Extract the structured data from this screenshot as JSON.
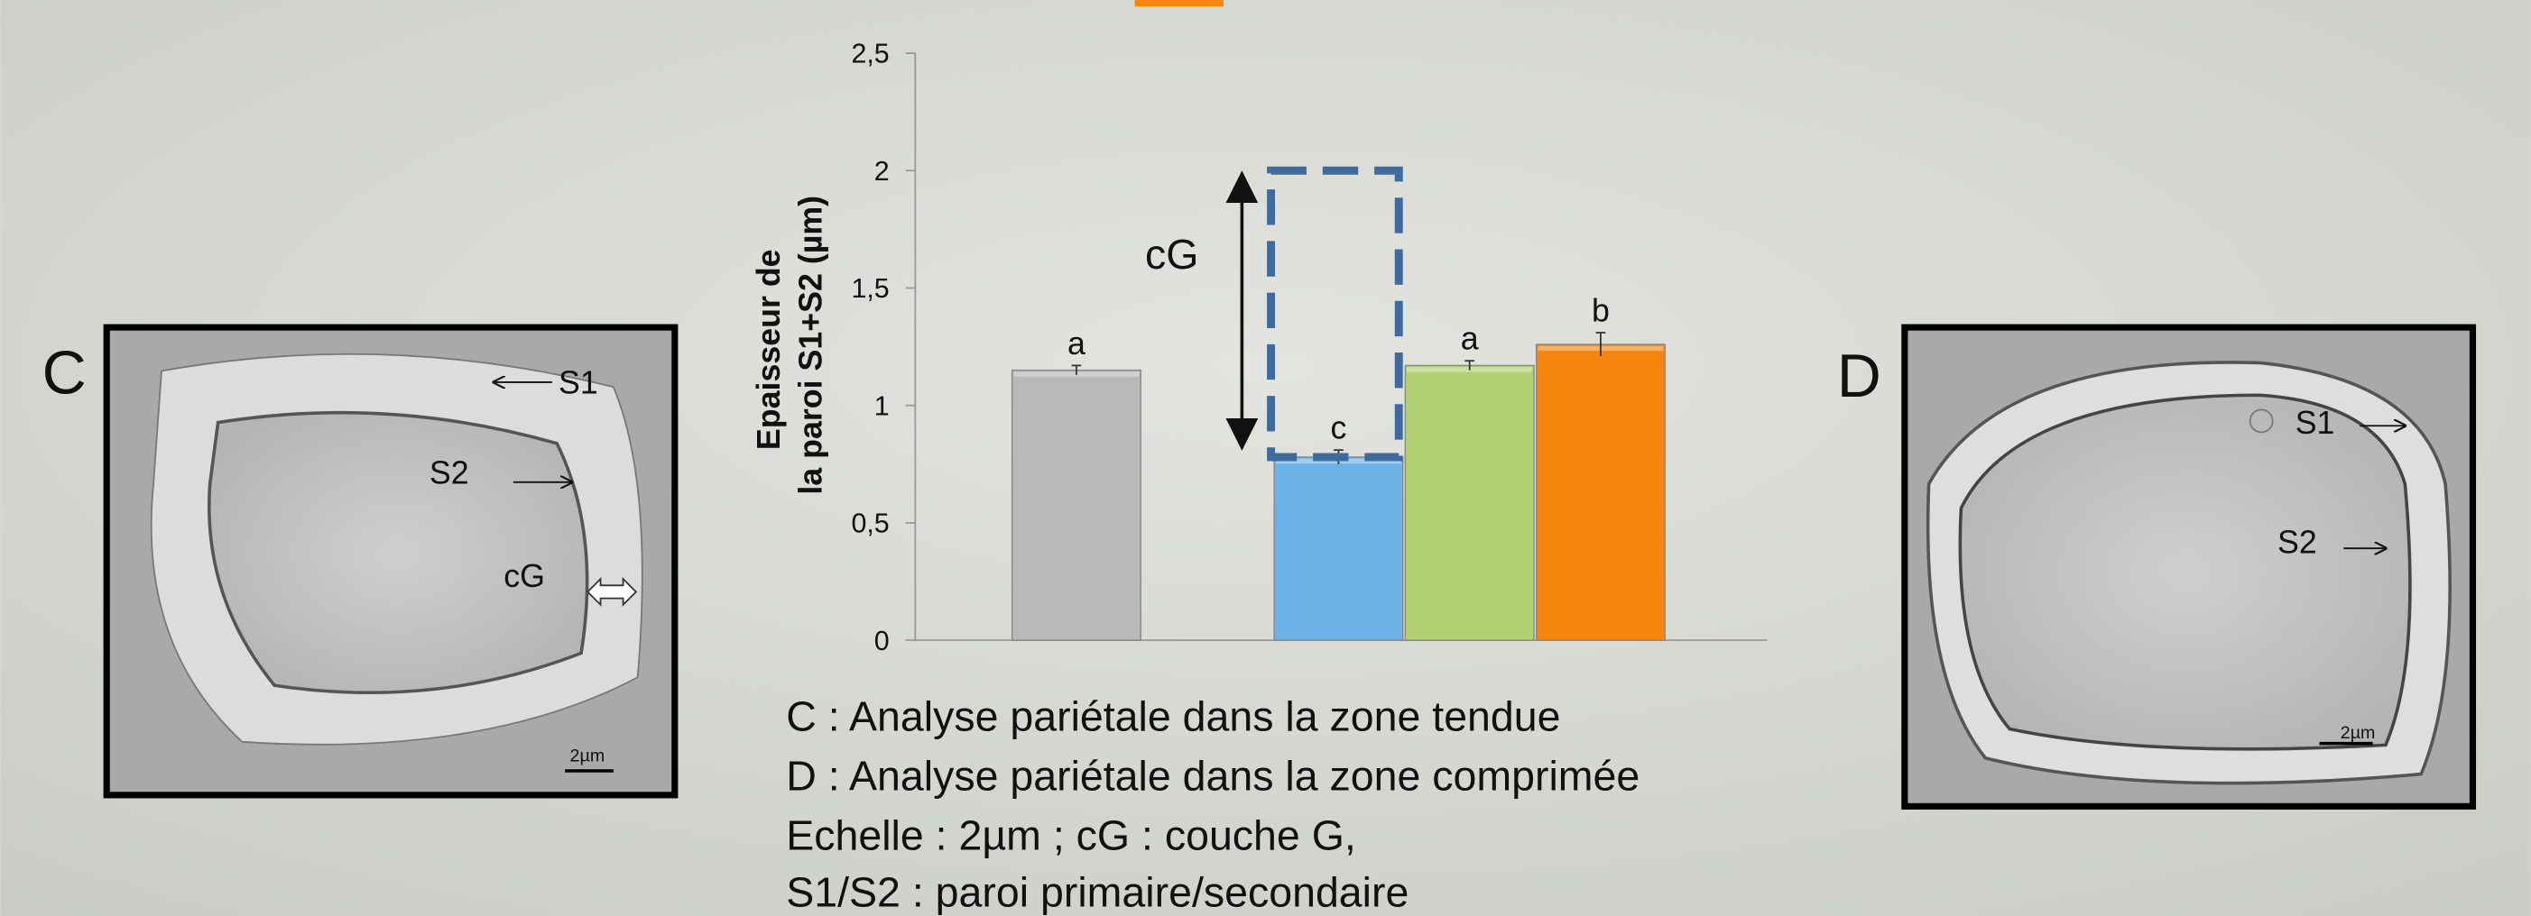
{
  "chart_data": {
    "type": "bar",
    "y_label": [
      "Epaisseur de",
      "la paroi S1+S2 (µm)"
    ],
    "categories": [
      null,
      null,
      null,
      null,
      null
    ],
    "values": [
      1.15,
      null,
      0.78,
      1.17,
      1.26
    ],
    "errors": [
      0.02,
      null,
      0.03,
      0.02,
      0.05
    ],
    "colors": [
      "#b9b9b9",
      null,
      "#6db3e8",
      "#b3d174",
      "#f6860f"
    ],
    "annotations": [
      "a",
      null,
      "c",
      "a",
      "b"
    ],
    "ylim": [
      0,
      2.5
    ],
    "yticks": [
      0,
      {
        "value": 0.5,
        "label": "0,5"
      },
      1,
      {
        "value": 1.5,
        "label": "1,5"
      },
      2,
      {
        "value": 2.5,
        "label": "2,5"
      }
    ],
    "bracket": {
      "label": "cG",
      "from": 0.78,
      "to": 2
    }
  },
  "panels": [
    {
      "label": "C",
      "annotations": [
        "S1",
        "S2",
        "cG"
      ],
      "scale": "2µm"
    },
    {
      "label": "D",
      "annotations": [
        "S1",
        "S2"
      ],
      "scale": "2µm"
    }
  ],
  "caption": [
    "C : Analyse pariétale dans la zone tendue",
    "D : Analyse pariétale dans la zone comprimée",
    "Echelle : 2µm ; cG : couche G,",
    "S1/S2 : paroi primaire/secondaire"
  ]
}
